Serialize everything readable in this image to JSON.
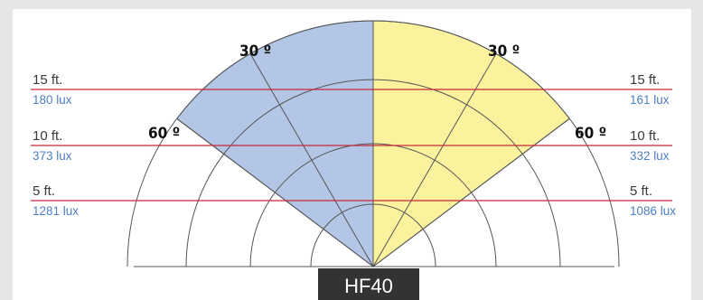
{
  "colors": {
    "left_beam": "#b3c6e6",
    "right_beam": "#fbf29e",
    "distance_line": "#c8283a",
    "lux_text": "#4d7fc6",
    "model_badge": "#333333"
  },
  "model": "HF40",
  "angle_labels": {
    "left_30": "30 º",
    "right_30": "30 º",
    "left_60": "60 º",
    "right_60": "60 º"
  },
  "distances": [
    {
      "label": "15 ft.",
      "left_lux": "180 lux",
      "right_lux": "161 lux"
    },
    {
      "label": "10 ft.",
      "left_lux": "373 lux",
      "right_lux": "332 lux"
    },
    {
      "label": "5 ft.",
      "left_lux": "1281 lux",
      "right_lux": "1086 lux"
    }
  ]
}
